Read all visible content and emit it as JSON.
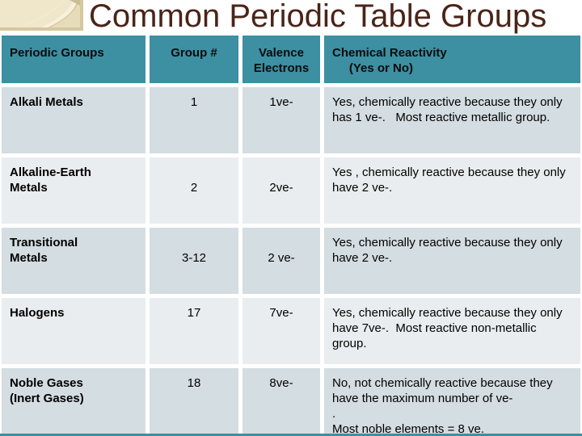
{
  "slide": {
    "title": "Common Periodic Table Groups",
    "colors": {
      "title_text": "#4a2418",
      "header_bg": "#3d8fa2",
      "row_odd_bg": "#d4dde1",
      "row_even_bg": "#e9edef",
      "corner_bg": "#ebe1c3",
      "corner_arc": "#f7f0dd",
      "corner_edge": "#d2c29b",
      "bottom_strip": "#3d8fa2"
    },
    "table": {
      "headers": [
        "Periodic Groups",
        "Group #",
        "Valence\nElectrons",
        "Chemical Reactivity\n     (Yes or No)"
      ],
      "rows": [
        {
          "group": "Alkali Metals",
          "group_num": "1",
          "valence": "1ve-",
          "reactivity": "Yes, chemically reactive because they only has 1 ve-.   Most reactive metallic group."
        },
        {
          "group": "Alkaline-Earth\nMetals",
          "group_num": "\n2",
          "valence": "\n2ve-",
          "reactivity": "Yes , chemically reactive because they only have 2 ve-."
        },
        {
          "group": "Transitional\nMetals",
          "group_num": "\n3-12",
          "valence": "\n2 ve-",
          "reactivity": "Yes, chemically reactive because they only have 2 ve-."
        },
        {
          "group": "Halogens",
          "group_num": "17",
          "valence": "7ve-",
          "reactivity": "Yes, chemically reactive because they only have 7ve-.  Most reactive non-metallic group."
        },
        {
          "group": "Noble Gases\n(Inert Gases)",
          "group_num": "18",
          "valence": "8ve-",
          "reactivity": "No, not chemically reactive because they have the maximum number of ve-\n.\nMost noble elements = 8 ve."
        }
      ]
    }
  }
}
